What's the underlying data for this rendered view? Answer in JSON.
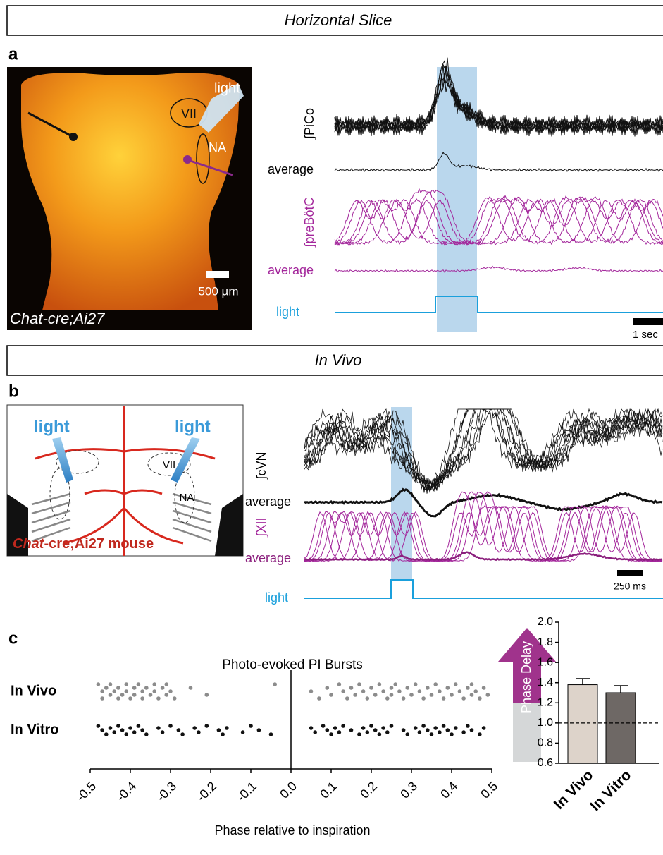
{
  "panel_a": {
    "header": "Horizontal Slice",
    "letter": "a",
    "image_labels": {
      "light": "light",
      "vii": "VII",
      "na": "NA",
      "scale": "500 µm",
      "genotype": "Chat-cre;Ai27"
    },
    "trace_labels": [
      "∫PiCo",
      "average",
      "∫preBötC",
      "average",
      "light"
    ],
    "scale_bar": "1 sec"
  },
  "panel_b": {
    "header": "In Vivo",
    "letter": "b",
    "image_labels": {
      "light_left": "light",
      "light_right": "light",
      "vii": "VII",
      "na": "NA",
      "genotype_gene": "Chat",
      "genotype_rest": "-cre;Ai27 mouse"
    },
    "trace_labels": [
      "∫cVN",
      "average",
      "∫XII",
      "average",
      "light"
    ],
    "scale_bar": "250 ms"
  },
  "panel_c": {
    "letter": "c",
    "arrow_label": "Phase Delay"
  },
  "chart_data": [
    {
      "type": "strip",
      "title": "Photo-evoked PI Bursts",
      "x_label": "Phase relative to inspiration",
      "series": [
        {
          "name": "In Vivo",
          "color": "#8c8c8c",
          "values": [
            -0.48,
            -0.47,
            -0.47,
            -0.46,
            -0.45,
            -0.45,
            -0.44,
            -0.43,
            -0.43,
            -0.42,
            -0.41,
            -0.41,
            -0.4,
            -0.39,
            -0.39,
            -0.38,
            -0.37,
            -0.37,
            -0.36,
            -0.35,
            -0.34,
            -0.34,
            -0.33,
            -0.32,
            -0.31,
            -0.31,
            -0.3,
            -0.29,
            -0.25,
            -0.21,
            -0.04,
            0.05,
            0.07,
            0.09,
            0.1,
            0.12,
            0.13,
            0.14,
            0.15,
            0.16,
            0.17,
            0.18,
            0.19,
            0.2,
            0.21,
            0.22,
            0.23,
            0.24,
            0.25,
            0.25,
            0.26,
            0.27,
            0.28,
            0.29,
            0.3,
            0.31,
            0.32,
            0.33,
            0.34,
            0.35,
            0.36,
            0.37,
            0.38,
            0.39,
            0.4,
            0.41,
            0.42,
            0.43,
            0.44,
            0.45,
            0.45,
            0.46,
            0.47,
            0.48,
            0.49
          ]
        },
        {
          "name": "In Vitro",
          "color": "#111111",
          "values": [
            -0.48,
            -0.47,
            -0.46,
            -0.45,
            -0.44,
            -0.43,
            -0.42,
            -0.41,
            -0.4,
            -0.39,
            -0.38,
            -0.37,
            -0.36,
            -0.33,
            -0.32,
            -0.3,
            -0.28,
            -0.27,
            -0.24,
            -0.23,
            -0.21,
            -0.18,
            -0.17,
            -0.16,
            -0.12,
            -0.1,
            -0.08,
            -0.05,
            0.05,
            0.06,
            0.08,
            0.09,
            0.1,
            0.11,
            0.12,
            0.13,
            0.15,
            0.17,
            0.18,
            0.19,
            0.2,
            0.21,
            0.22,
            0.23,
            0.24,
            0.25,
            0.28,
            0.29,
            0.31,
            0.32,
            0.33,
            0.34,
            0.35,
            0.36,
            0.37,
            0.38,
            0.39,
            0.4,
            0.41,
            0.43,
            0.44,
            0.45,
            0.47,
            0.48
          ]
        }
      ],
      "xlim": [
        -0.5,
        0.5
      ],
      "xticks": [
        -0.5,
        -0.4,
        -0.3,
        -0.2,
        -0.1,
        {
          "value": 0,
          "label": "0.0"
        },
        0.1,
        0.2,
        0.3,
        0.4,
        0.5
      ]
    },
    {
      "type": "bar",
      "categories": [
        "In Vivo",
        "In Vitro"
      ],
      "values": [
        1.38,
        1.3
      ],
      "errors": [
        0.06,
        0.07
      ],
      "colors": [
        "#ddd3ca",
        "#6e6865"
      ],
      "ylim": [
        0.6,
        2.0
      ],
      "yticks": [
        0.6,
        0.8,
        {
          "value": 1,
          "label": "1.0"
        },
        1.2,
        1.4,
        1.6,
        1.8,
        {
          "value": 2,
          "label": "2.0"
        }
      ],
      "reference_line": 1
    }
  ]
}
